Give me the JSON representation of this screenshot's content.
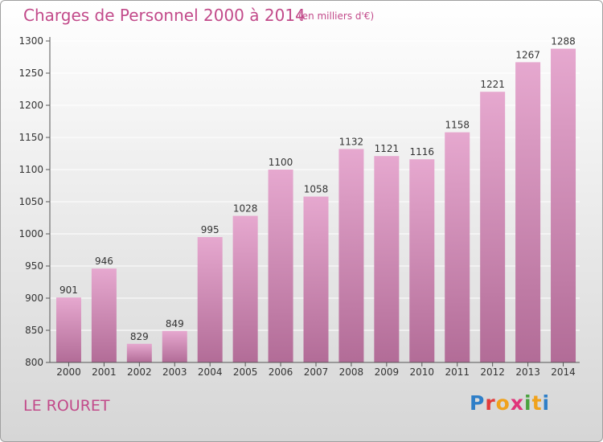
{
  "header": {
    "title": "Charges de Personnel 2000 à 2014",
    "subtitle": "(en milliers d'€)"
  },
  "footer": {
    "commune": "LE ROURET",
    "logo_text": "Proxiti",
    "logo_letters": [
      {
        "char": "P",
        "color": "#2f7fc8"
      },
      {
        "char": "r",
        "color": "#e23b3b"
      },
      {
        "char": "o",
        "color": "#f0a21c"
      },
      {
        "char": "x",
        "color": "#e0337a"
      },
      {
        "char": "i",
        "color": "#4aa23f"
      },
      {
        "char": "t",
        "color": "#f0a21c"
      },
      {
        "char": "i",
        "color": "#2f7fc8"
      }
    ]
  },
  "colors": {
    "bar_top": "#e6a8cf",
    "bar_bottom": "#b26c97",
    "accent": "#c24a8a",
    "axis": "#555555",
    "grid": "#ffffff"
  },
  "chart_data": {
    "type": "bar",
    "categories": [
      "2000",
      "2001",
      "2002",
      "2003",
      "2004",
      "2005",
      "2006",
      "2007",
      "2008",
      "2009",
      "2010",
      "2011",
      "2012",
      "2013",
      "2014"
    ],
    "values": [
      901,
      946,
      829,
      849,
      995,
      1028,
      1100,
      1058,
      1132,
      1121,
      1116,
      1158,
      1221,
      1267,
      1288
    ],
    "data_labels": [
      "901",
      "946",
      "829",
      "849",
      "995",
      "1028",
      "1100",
      "1058",
      "1132",
      "1121",
      "1116",
      "1158",
      "1221",
      "1267",
      "1288"
    ],
    "y_ticks": [
      "800",
      "850",
      "900",
      "950",
      "1000",
      "1050",
      "1100",
      "1150",
      "1200",
      "1250",
      "1300"
    ],
    "ylim": [
      800,
      1300
    ],
    "grid": true,
    "title": "Charges de Personnel 2000 à 2014",
    "xlabel": "",
    "ylabel": ""
  }
}
